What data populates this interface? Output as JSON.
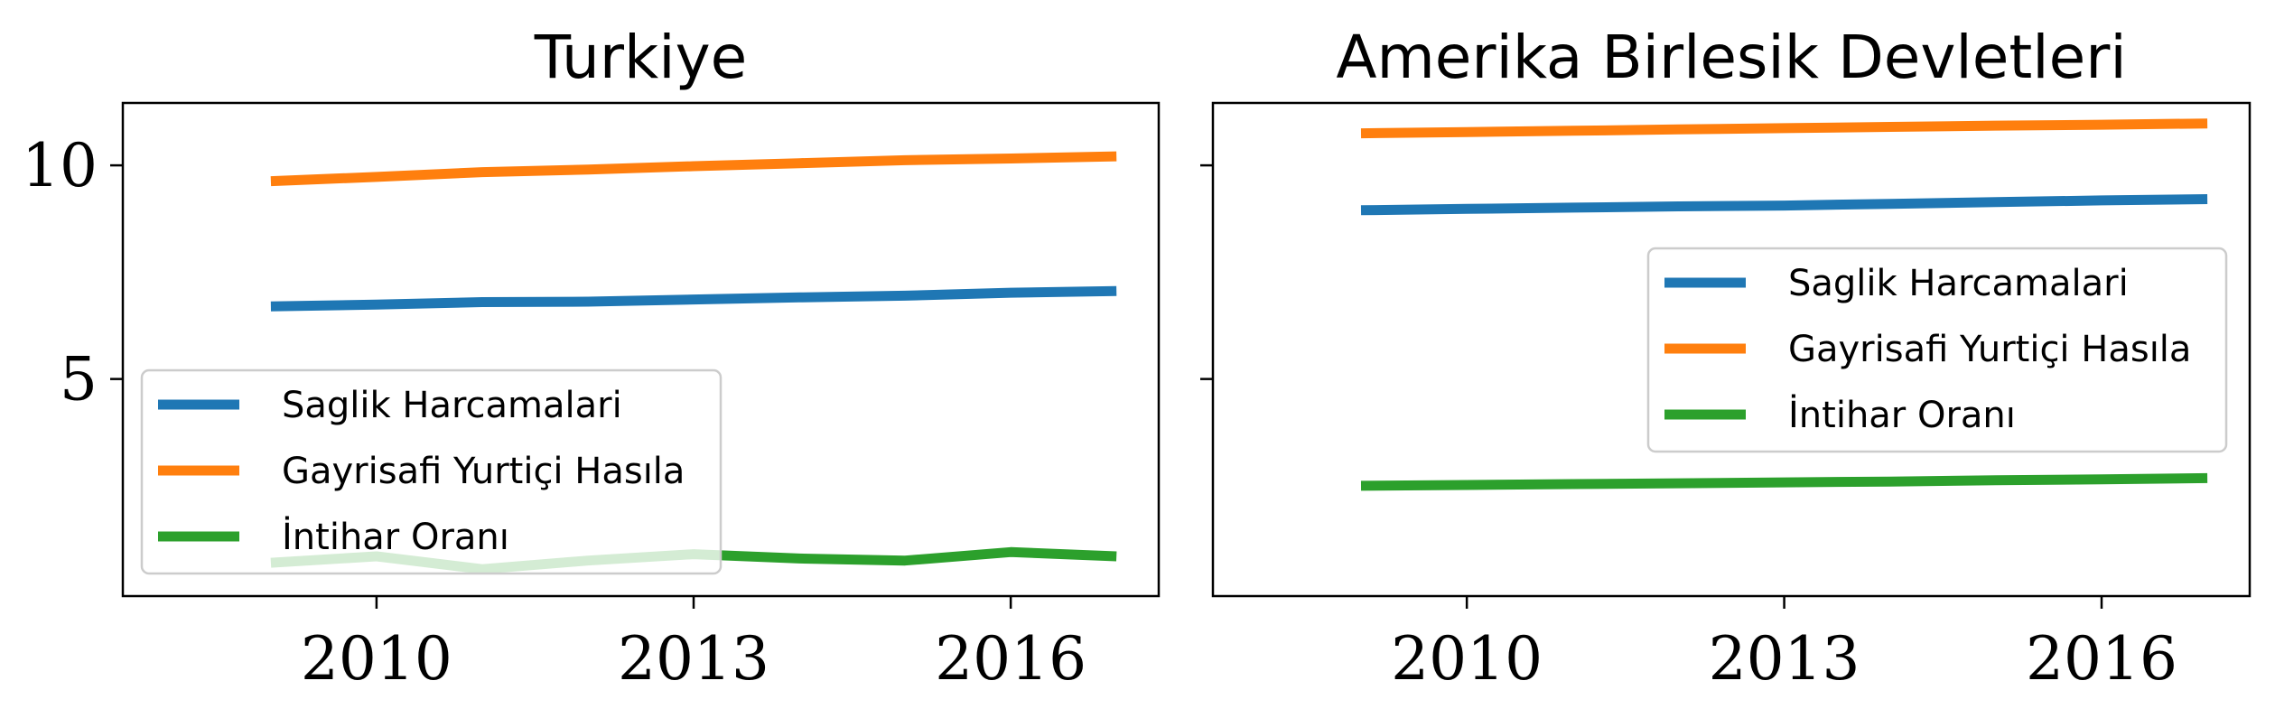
{
  "chart_data": [
    {
      "type": "line",
      "title": "Turkiye",
      "xlabel": "",
      "ylabel": "",
      "x": [
        2009,
        2010,
        2011,
        2012,
        2013,
        2014,
        2015,
        2016,
        2017
      ],
      "xticks": [
        2010,
        2013,
        2016
      ],
      "xtick_labels": [
        "2010",
        "2013",
        "2016"
      ],
      "xlim": [
        2007.6,
        2017.4
      ],
      "ylim": [
        -0.08,
        11.46
      ],
      "yticks": [
        5,
        10
      ],
      "ytick_labels": [
        "5",
        "10"
      ],
      "grid": false,
      "legend_position": "lower-left",
      "series": [
        {
          "name": "Saglik Harcamalari",
          "color": "#1f77b4",
          "values": [
            6.7,
            6.74,
            6.8,
            6.81,
            6.86,
            6.91,
            6.95,
            7.02,
            7.06
          ]
        },
        {
          "name": "Gayrisafi Yurtiçi Hasıla",
          "color": "#ff7f0e",
          "values": [
            9.63,
            9.73,
            9.84,
            9.9,
            9.98,
            10.05,
            10.12,
            10.16,
            10.21
          ]
        },
        {
          "name": "İntihar Oranı",
          "color": "#2ca02c",
          "values": [
            0.7,
            0.85,
            0.55,
            0.75,
            0.9,
            0.8,
            0.75,
            0.95,
            0.85
          ]
        }
      ]
    },
    {
      "type": "line",
      "title": "Amerika Birlesik Devletleri",
      "xlabel": "",
      "ylabel": "",
      "x": [
        2009,
        2010,
        2011,
        2012,
        2013,
        2014,
        2015,
        2016,
        2017
      ],
      "xticks": [
        2010,
        2013,
        2016
      ],
      "xtick_labels": [
        "2010",
        "2013",
        "2016"
      ],
      "xlim": [
        2007.6,
        2017.4
      ],
      "ylim": [
        -0.08,
        11.46
      ],
      "yticks": [
        5,
        10
      ],
      "ytick_labels": [
        "",
        ""
      ],
      "grid": false,
      "legend_position": "center-right",
      "series": [
        {
          "name": "Saglik Harcamalari",
          "color": "#1f77b4",
          "values": [
            8.95,
            8.98,
            9.01,
            9.04,
            9.06,
            9.1,
            9.14,
            9.18,
            9.21
          ]
        },
        {
          "name": "Gayrisafi Yurtiçi Hasıla",
          "color": "#ff7f0e",
          "values": [
            10.75,
            10.78,
            10.81,
            10.84,
            10.87,
            10.9,
            10.93,
            10.95,
            10.98
          ]
        },
        {
          "name": "İntihar Oranı",
          "color": "#2ca02c",
          "values": [
            2.5,
            2.52,
            2.54,
            2.56,
            2.58,
            2.6,
            2.63,
            2.65,
            2.68
          ]
        }
      ]
    }
  ]
}
